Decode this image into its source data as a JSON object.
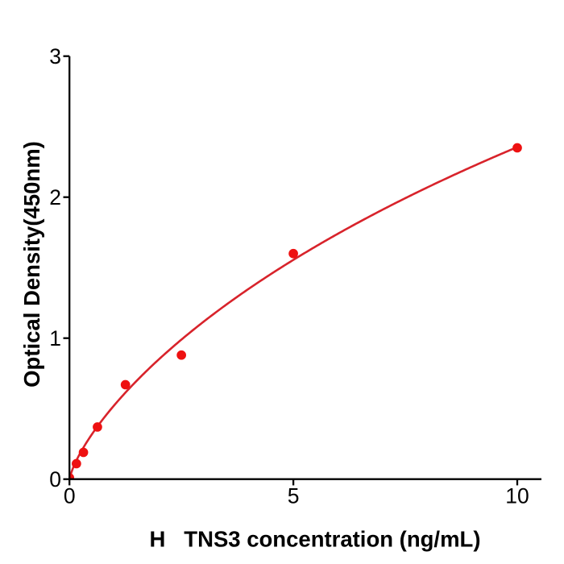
{
  "figure": {
    "background_color": "#ffffff",
    "axis_color": "#000000"
  },
  "chart_data": {
    "type": "scatter",
    "title": "",
    "xlabel": "H   TNS3 concentration (ng/mL)",
    "ylabel": "Optical Density(450nm)",
    "x": [
      0,
      0.156,
      0.3125,
      0.625,
      1.25,
      2.5,
      5,
      10
    ],
    "y": [
      0.01,
      0.11,
      0.19,
      0.37,
      0.67,
      0.88,
      1.6,
      2.35
    ],
    "xlim": [
      0,
      10.54
    ],
    "ylim": [
      0,
      3.0
    ],
    "xticks": {
      "values": [
        0,
        5,
        10
      ],
      "labels": [
        "0",
        "5",
        "10"
      ]
    },
    "yticks": {
      "values": [
        0,
        1,
        2,
        3
      ],
      "labels": [
        "0",
        "1",
        "2",
        "3"
      ]
    },
    "grid": false,
    "legend": null,
    "marker_color": "#ee1111",
    "line_color": "#d8232b",
    "fit_curve": {
      "model": "4PL",
      "a": -0.00486,
      "b": 0.7459,
      "c": 45.995,
      "d": 9.7203,
      "x_start": 0,
      "x_end": 10
    }
  }
}
